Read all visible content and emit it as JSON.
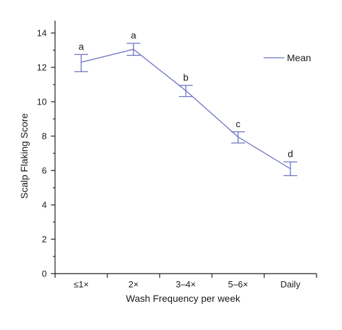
{
  "chart_data": {
    "type": "line",
    "xlabel": "Wash Frequency per week",
    "ylabel": "Scalp Flaking Score",
    "categories": [
      "≤1×",
      "2×",
      "3–4×",
      "5–6×",
      "Daily"
    ],
    "series": [
      {
        "name": "Mean",
        "values": [
          12.3,
          13.05,
          10.65,
          7.95,
          6.1
        ],
        "error_low": [
          11.75,
          12.7,
          10.3,
          7.6,
          5.7
        ],
        "error_high": [
          12.75,
          13.4,
          10.95,
          8.25,
          6.5
        ],
        "group_labels": [
          "a",
          "a",
          "b",
          "c",
          "d"
        ]
      }
    ],
    "ylim": [
      0,
      15
    ],
    "yticks": [
      0,
      2,
      4,
      6,
      8,
      10,
      12,
      14
    ],
    "grid": false,
    "legend_position": "top-right",
    "series_color": "#6a6fc2"
  }
}
